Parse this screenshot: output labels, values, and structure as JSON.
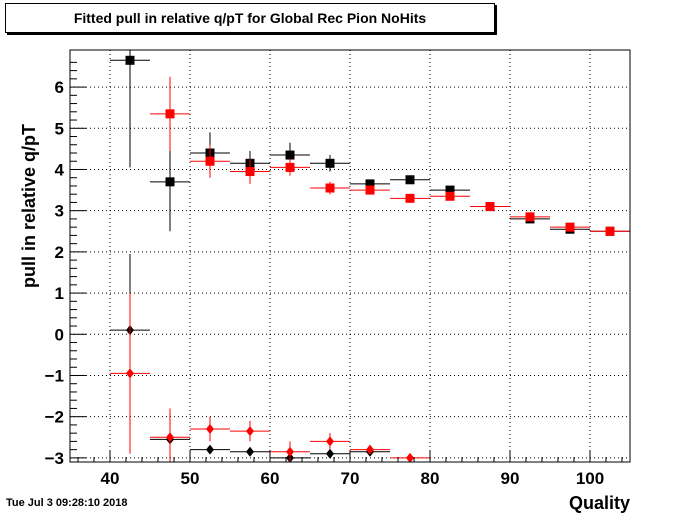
{
  "chart_data": {
    "type": "scatter",
    "title": "Fitted pull in relative q/pT for Global Rec Pion NoHits",
    "xlabel": "Quality",
    "ylabel": "pull in relative q/pT",
    "xlim": [
      35,
      105
    ],
    "ylim": [
      -3.1,
      6.9
    ],
    "xticks": [
      40,
      50,
      60,
      70,
      80,
      90,
      100
    ],
    "yticks": [
      -3,
      -2,
      -1,
      0,
      1,
      2,
      3,
      4,
      5,
      6
    ],
    "grid": true,
    "series": [
      {
        "marker": "square",
        "color": "#000000",
        "points": [
          {
            "x": 42.5,
            "y": 6.65,
            "xerr": 2.5,
            "yerr": 2.6
          },
          {
            "x": 47.5,
            "y": 3.7,
            "xerr": 2.5,
            "yerr": 1.2
          },
          {
            "x": 52.5,
            "y": 4.4,
            "xerr": 2.5,
            "yerr": 0.5
          },
          {
            "x": 57.5,
            "y": 4.15,
            "xerr": 2.5,
            "yerr": 0.3
          },
          {
            "x": 62.5,
            "y": 4.35,
            "xerr": 2.5,
            "yerr": 0.3
          },
          {
            "x": 67.5,
            "y": 4.15,
            "xerr": 2.5,
            "yerr": 0.2
          },
          {
            "x": 72.5,
            "y": 3.65,
            "xerr": 2.5,
            "yerr": 0.1
          },
          {
            "x": 77.5,
            "y": 3.75,
            "xerr": 2.5,
            "yerr": 0.1
          },
          {
            "x": 82.5,
            "y": 3.5,
            "xerr": 2.5,
            "yerr": 0.1
          },
          {
            "x": 87.5,
            "y": 3.1,
            "xerr": 2.5,
            "yerr": 0.05
          },
          {
            "x": 92.5,
            "y": 2.8,
            "xerr": 2.5,
            "yerr": 0.05
          },
          {
            "x": 97.5,
            "y": 2.55,
            "xerr": 2.5,
            "yerr": 0.05
          },
          {
            "x": 102.5,
            "y": 2.5,
            "xerr": 2.5,
            "yerr": 0.05
          }
        ]
      },
      {
        "marker": "square",
        "color": "#ff0000",
        "points": [
          {
            "x": 47.5,
            "y": 5.35,
            "xerr": 2.5,
            "yerr": 0.9
          },
          {
            "x": 52.5,
            "y": 4.2,
            "xerr": 2.5,
            "yerr": 0.4
          },
          {
            "x": 57.5,
            "y": 3.95,
            "xerr": 2.5,
            "yerr": 0.3
          },
          {
            "x": 62.5,
            "y": 4.05,
            "xerr": 2.5,
            "yerr": 0.2
          },
          {
            "x": 67.5,
            "y": 3.55,
            "xerr": 2.5,
            "yerr": 0.15
          },
          {
            "x": 72.5,
            "y": 3.5,
            "xerr": 2.5,
            "yerr": 0.1
          },
          {
            "x": 77.5,
            "y": 3.3,
            "xerr": 2.5,
            "yerr": 0.08
          },
          {
            "x": 82.5,
            "y": 3.35,
            "xerr": 2.5,
            "yerr": 0.08
          },
          {
            "x": 87.5,
            "y": 3.1,
            "xerr": 2.5,
            "yerr": 0.06
          },
          {
            "x": 92.5,
            "y": 2.85,
            "xerr": 2.5,
            "yerr": 0.05
          },
          {
            "x": 97.5,
            "y": 2.6,
            "xerr": 2.5,
            "yerr": 0.05
          },
          {
            "x": 102.5,
            "y": 2.5,
            "xerr": 2.5,
            "yerr": 0.05
          }
        ]
      },
      {
        "marker": "diamond",
        "color": "#000000",
        "points": [
          {
            "x": 42.5,
            "y": 0.1,
            "xerr": 2.5,
            "yerr": 1.85
          },
          {
            "x": 47.5,
            "y": -2.55,
            "xerr": 2.5,
            "yerr": 0.1
          },
          {
            "x": 52.5,
            "y": -2.8,
            "xerr": 2.5,
            "yerr": 0.1
          },
          {
            "x": 57.5,
            "y": -2.85,
            "xerr": 2.5,
            "yerr": 0.1
          },
          {
            "x": 62.5,
            "y": -3.0,
            "xerr": 2.5,
            "yerr": 0.1
          },
          {
            "x": 67.5,
            "y": -2.9,
            "xerr": 2.5,
            "yerr": 0.08
          },
          {
            "x": 72.5,
            "y": -2.85,
            "xerr": 2.5,
            "yerr": 0.08
          }
        ]
      },
      {
        "marker": "diamond",
        "color": "#ff0000",
        "points": [
          {
            "x": 42.5,
            "y": -0.95,
            "xerr": 2.5,
            "yerr": 1.95
          },
          {
            "x": 47.5,
            "y": -2.5,
            "xerr": 2.5,
            "yerr": 0.7
          },
          {
            "x": 52.5,
            "y": -2.3,
            "xerr": 2.5,
            "yerr": 0.3
          },
          {
            "x": 57.5,
            "y": -2.35,
            "xerr": 2.5,
            "yerr": 0.25
          },
          {
            "x": 62.5,
            "y": -2.85,
            "xerr": 2.5,
            "yerr": 0.25
          },
          {
            "x": 67.5,
            "y": -2.6,
            "xerr": 2.5,
            "yerr": 0.2
          },
          {
            "x": 72.5,
            "y": -2.8,
            "xerr": 2.5,
            "yerr": 0.1
          },
          {
            "x": 77.5,
            "y": -3.0,
            "xerr": 2.5,
            "yerr": 0.06
          }
        ]
      }
    ]
  },
  "timestamp": "Tue Jul  3 09:28:10 2018"
}
